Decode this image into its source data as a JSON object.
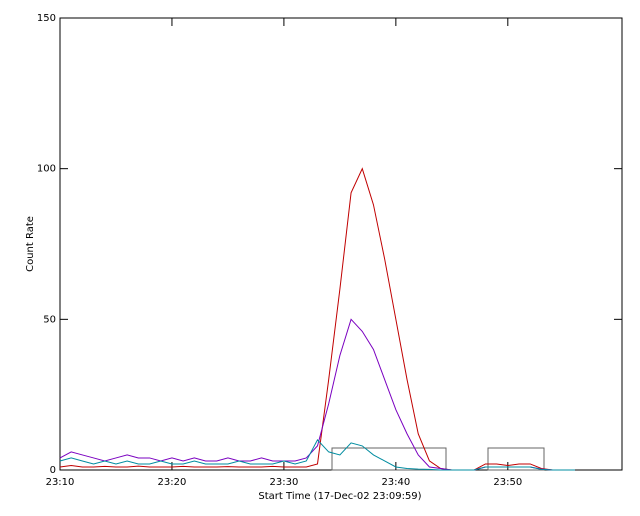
{
  "chart_data": {
    "type": "line",
    "xlabel": "Start Time (17-Dec-02 23:09:59)",
    "ylabel": "Count Rate",
    "x": [
      0,
      1,
      2,
      3,
      4,
      5,
      6,
      7,
      8,
      9,
      10,
      11,
      12,
      13,
      14,
      15,
      16,
      17,
      18,
      19,
      20,
      21,
      22,
      23,
      24,
      25,
      26,
      27,
      28,
      29,
      30,
      31,
      32,
      33,
      34,
      35,
      36,
      37,
      38,
      39,
      40,
      41,
      42,
      43,
      44,
      45,
      46
    ],
    "series": [
      {
        "name": "red",
        "color": "#c00000",
        "values": [
          1,
          1.5,
          1,
          1,
          1.2,
          1,
          1,
          1.3,
          1,
          1,
          1,
          1.2,
          1,
          1,
          1,
          1.1,
          1,
          1,
          1,
          1.2,
          1,
          1,
          1,
          2,
          30,
          60,
          92,
          100,
          88,
          70,
          50,
          30,
          12,
          3,
          0.5,
          0,
          0,
          0,
          2,
          2,
          1.5,
          2,
          2,
          0.5,
          0,
          0,
          0
        ]
      },
      {
        "name": "purple",
        "color": "#7a00c0",
        "values": [
          4,
          6,
          5,
          4,
          3,
          4,
          5,
          4,
          4,
          3,
          4,
          3,
          4,
          3,
          3,
          4,
          3,
          3,
          4,
          3,
          3,
          3,
          4,
          8,
          22,
          38,
          50,
          46,
          40,
          30,
          20,
          12,
          5,
          1,
          0.5,
          0,
          0,
          0,
          1,
          1,
          1,
          1,
          1,
          0.3,
          0,
          0,
          0
        ]
      },
      {
        "name": "teal",
        "color": "#008ca0",
        "values": [
          3,
          4,
          3,
          2,
          3,
          2,
          3,
          2,
          2,
          3,
          2,
          2,
          3,
          2,
          2,
          2,
          3,
          2,
          2,
          2,
          3,
          2,
          3,
          10,
          6,
          5,
          9,
          8,
          5,
          3,
          1,
          0.5,
          0.3,
          0.2,
          0,
          0,
          0,
          0,
          1,
          1,
          1,
          1,
          1,
          0.2,
          0,
          0,
          0
        ]
      }
    ],
    "xlim": [
      0,
      50.2
    ],
    "xticks": [
      {
        "value": 0,
        "label": "23:10"
      },
      {
        "value": 10,
        "label": "23:20"
      },
      {
        "value": 20,
        "label": "23:30"
      },
      {
        "value": 30,
        "label": "23:40"
      },
      {
        "value": 40,
        "label": "23:50"
      }
    ],
    "ylim": [
      0,
      150
    ],
    "yticks": [
      0,
      50,
      100,
      150
    ]
  }
}
